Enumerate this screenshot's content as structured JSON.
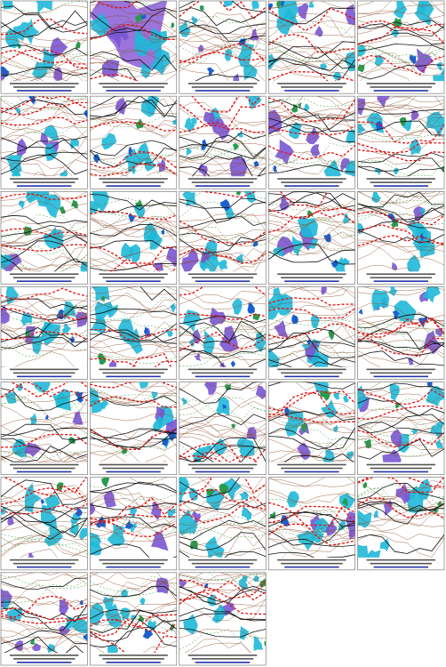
{
  "grid": {
    "columns": 5,
    "panel_count": 33
  }
}
